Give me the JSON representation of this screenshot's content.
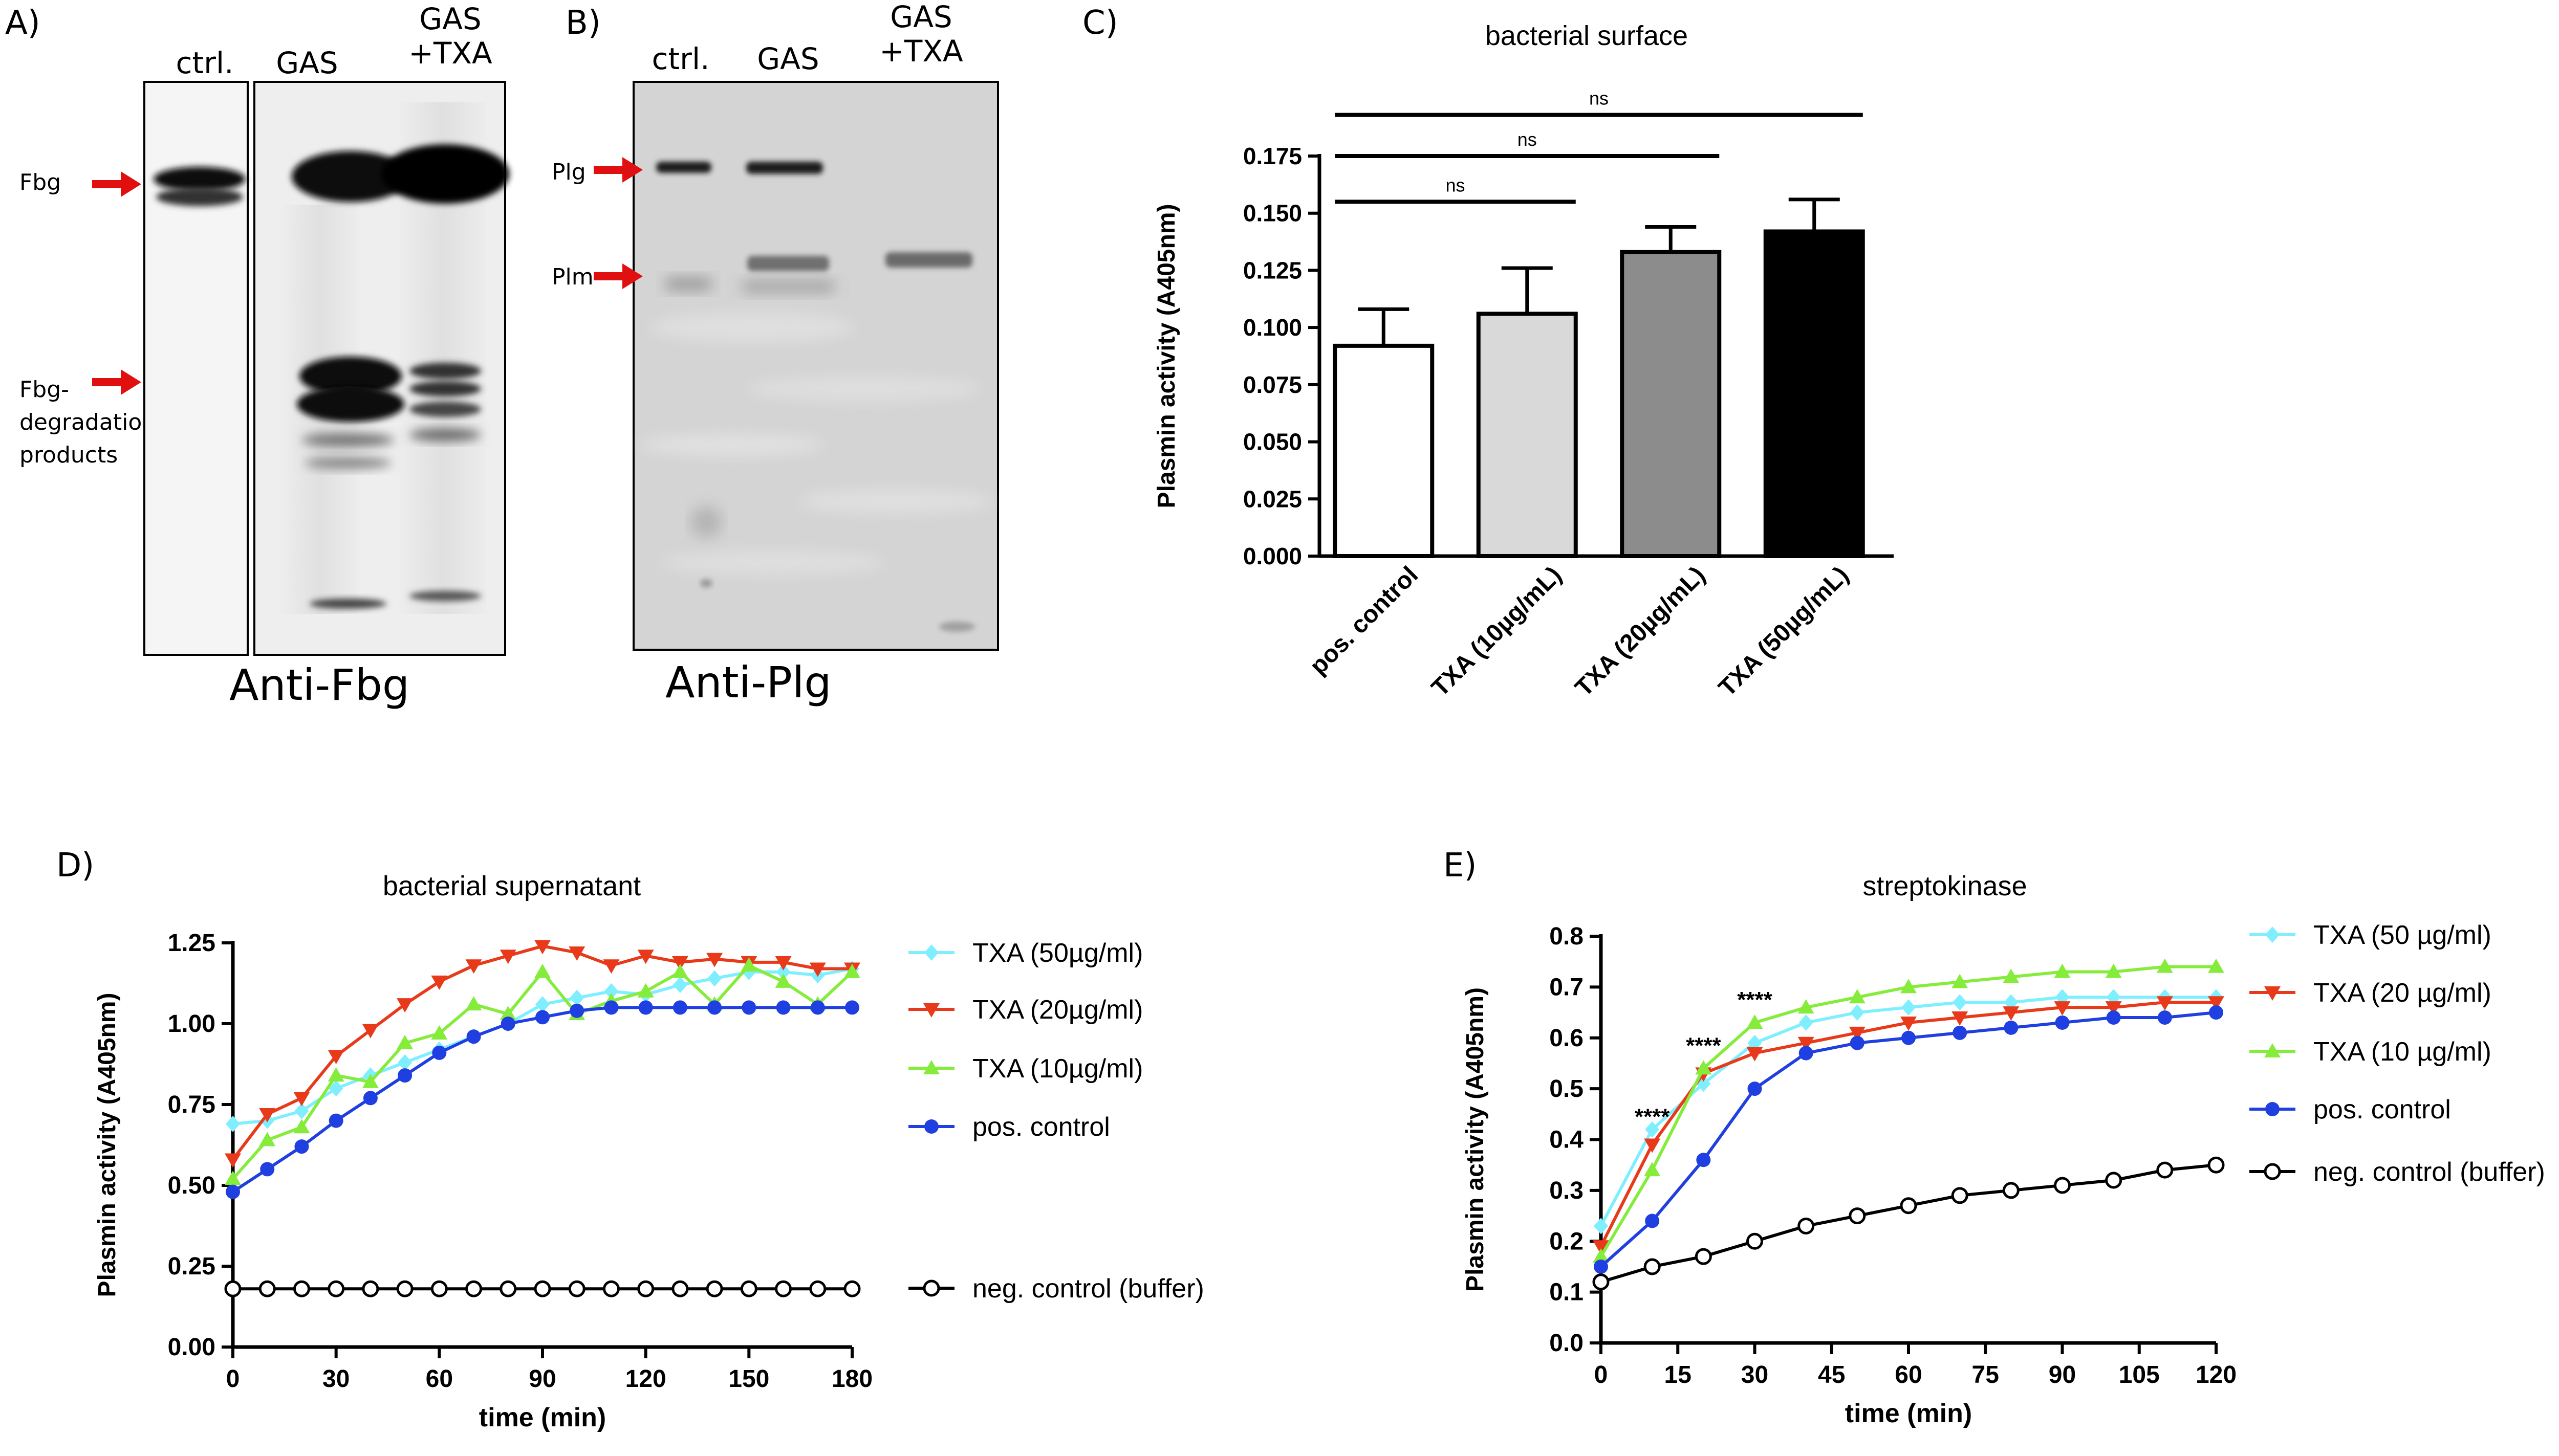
{
  "figure": {
    "panelA": {
      "letter": "A)",
      "lanes": [
        "ctrl.",
        "GAS",
        "GAS\n+TXA"
      ],
      "band_labels": [
        "Fbg",
        "Fbg-\ndegradation\nproducts"
      ],
      "title": "Anti-Fbg"
    },
    "panelB": {
      "letter": "B)",
      "lanes": [
        "ctrl.",
        "GAS",
        "GAS\n+TXA"
      ],
      "band_labels": [
        "Plg",
        "Plm"
      ],
      "title": "Anti-Plg"
    },
    "colors": {
      "arrow": "#e01010",
      "txa50": "#7fefff",
      "txa20": "#e83a1a",
      "txa10": "#86ec3c",
      "pos": "#1f3fe0",
      "neg": "#000000"
    }
  },
  "chart_data": [
    {
      "id": "C",
      "letter": "C)",
      "type": "bar",
      "title": "bacterial surface",
      "xlabel": "",
      "ylabel": "Plasmin activity (A405nm)",
      "ylim": [
        0,
        0.175
      ],
      "yticks": [
        0.0,
        0.025,
        0.05,
        0.075,
        0.1,
        0.125,
        0.15,
        0.175
      ],
      "ytick_labels": [
        "0.000",
        "0.025",
        "0.050",
        "0.075",
        "0.100",
        "0.125",
        "0.150",
        "0.175"
      ],
      "categories": [
        "pos. control",
        "TXA (10µg/mL)",
        "TXA (20µg/mL)",
        "TXA (50µg/mL)"
      ],
      "values": [
        0.092,
        0.106,
        0.133,
        0.142
      ],
      "errors": [
        0.016,
        0.02,
        0.011,
        0.014
      ],
      "bar_colors": [
        "#ffffff",
        "#d9d9d9",
        "#8c8c8c",
        "#000000"
      ],
      "significance": [
        {
          "from": 0,
          "to": 1,
          "label": "ns",
          "y": 0.155
        },
        {
          "from": 0,
          "to": 2,
          "label": "ns",
          "y": 0.175
        },
        {
          "from": 0,
          "to": 3,
          "label": "ns",
          "y": 0.193
        }
      ]
    },
    {
      "id": "D",
      "letter": "D)",
      "type": "line",
      "title": "bacterial supernatant",
      "xlabel": "time (min)",
      "ylabel": "Plasmin activity (A405nm)",
      "xlim": [
        0,
        180
      ],
      "ylim": [
        0,
        1.25
      ],
      "xticks": [
        0,
        30,
        60,
        90,
        120,
        150,
        180
      ],
      "yticks": [
        0.0,
        0.25,
        0.5,
        0.75,
        1.0,
        1.25
      ],
      "ytick_labels": [
        "0.00",
        "0.25",
        "0.50",
        "0.75",
        "1.00",
        "1.25"
      ],
      "x": [
        0,
        10,
        20,
        30,
        40,
        50,
        60,
        70,
        80,
        90,
        100,
        110,
        120,
        130,
        140,
        150,
        160,
        170,
        180
      ],
      "series": [
        {
          "name": "TXA (50µg/ml)",
          "marker": "diamond",
          "color": "#7fefff",
          "values": [
            0.69,
            0.7,
            0.73,
            0.8,
            0.84,
            0.88,
            0.92,
            0.96,
            1.0,
            1.06,
            1.08,
            1.1,
            1.09,
            1.12,
            1.14,
            1.16,
            1.16,
            1.15,
            1.17
          ]
        },
        {
          "name": "TXA (20µg/ml)",
          "marker": "triangle-down",
          "color": "#e83a1a",
          "values": [
            0.58,
            0.72,
            0.77,
            0.9,
            0.98,
            1.06,
            1.13,
            1.18,
            1.21,
            1.24,
            1.22,
            1.18,
            1.21,
            1.19,
            1.2,
            1.19,
            1.19,
            1.17,
            1.17
          ]
        },
        {
          "name": "TXA (10µg/ml)",
          "marker": "triangle-up",
          "color": "#86ec3c",
          "values": [
            0.52,
            0.64,
            0.68,
            0.84,
            0.82,
            0.94,
            0.97,
            1.06,
            1.03,
            1.16,
            1.03,
            1.07,
            1.1,
            1.16,
            1.06,
            1.18,
            1.13,
            1.06,
            1.16
          ]
        },
        {
          "name": "pos. control",
          "marker": "circle",
          "color": "#1f3fe0",
          "values": [
            0.48,
            0.55,
            0.62,
            0.7,
            0.77,
            0.84,
            0.91,
            0.96,
            1.0,
            1.02,
            1.04,
            1.05,
            1.05,
            1.05,
            1.05,
            1.05,
            1.05,
            1.05,
            1.05
          ]
        },
        {
          "name": "neg. control (buffer)",
          "marker": "open-circle",
          "color": "#000000",
          "values": [
            0.18,
            0.18,
            0.18,
            0.18,
            0.18,
            0.18,
            0.18,
            0.18,
            0.18,
            0.18,
            0.18,
            0.18,
            0.18,
            0.18,
            0.18,
            0.18,
            0.18,
            0.18,
            0.18
          ]
        }
      ]
    },
    {
      "id": "E",
      "letter": "E)",
      "type": "line",
      "title": "streptokinase",
      "xlabel": "time (min)",
      "ylabel": "Plasmin activity (A405nm)",
      "xlim": [
        0,
        120
      ],
      "ylim": [
        0,
        0.8
      ],
      "xticks": [
        0,
        15,
        30,
        45,
        60,
        75,
        90,
        105,
        120
      ],
      "yticks": [
        0.0,
        0.1,
        0.2,
        0.3,
        0.4,
        0.5,
        0.6,
        0.7,
        0.8
      ],
      "ytick_labels": [
        "0.0",
        "0.1",
        "0.2",
        "0.3",
        "0.4",
        "0.5",
        "0.6",
        "0.7",
        "0.8"
      ],
      "x": [
        0,
        10,
        20,
        30,
        40,
        50,
        60,
        70,
        80,
        90,
        100,
        110,
        120
      ],
      "series": [
        {
          "name": "TXA (50 µg/ml)",
          "marker": "diamond",
          "color": "#7fefff",
          "values": [
            0.23,
            0.42,
            0.51,
            0.59,
            0.63,
            0.65,
            0.66,
            0.67,
            0.67,
            0.68,
            0.68,
            0.68,
            0.68
          ]
        },
        {
          "name": "TXA (20 µg/ml)",
          "marker": "triangle-down",
          "color": "#e83a1a",
          "values": [
            0.19,
            0.39,
            0.53,
            0.57,
            0.59,
            0.61,
            0.63,
            0.64,
            0.65,
            0.66,
            0.66,
            0.67,
            0.67
          ]
        },
        {
          "name": "TXA (10 µg/ml)",
          "marker": "triangle-up",
          "color": "#86ec3c",
          "values": [
            0.17,
            0.34,
            0.54,
            0.63,
            0.66,
            0.68,
            0.7,
            0.71,
            0.72,
            0.73,
            0.73,
            0.74,
            0.74
          ]
        },
        {
          "name": "pos. control",
          "marker": "circle",
          "color": "#1f3fe0",
          "values": [
            0.15,
            0.24,
            0.36,
            0.5,
            0.57,
            0.59,
            0.6,
            0.61,
            0.62,
            0.63,
            0.64,
            0.64,
            0.65
          ]
        },
        {
          "name": "neg. control (buffer)",
          "marker": "open-circle",
          "color": "#000000",
          "values": [
            0.12,
            0.15,
            0.17,
            0.2,
            0.23,
            0.25,
            0.27,
            0.29,
            0.3,
            0.31,
            0.32,
            0.34,
            0.35
          ]
        }
      ],
      "annotations": [
        {
          "text": "****",
          "x": 10,
          "y": 0.43
        },
        {
          "text": "****",
          "x": 20,
          "y": 0.57
        },
        {
          "text": "****",
          "x": 30,
          "y": 0.66
        }
      ]
    }
  ]
}
